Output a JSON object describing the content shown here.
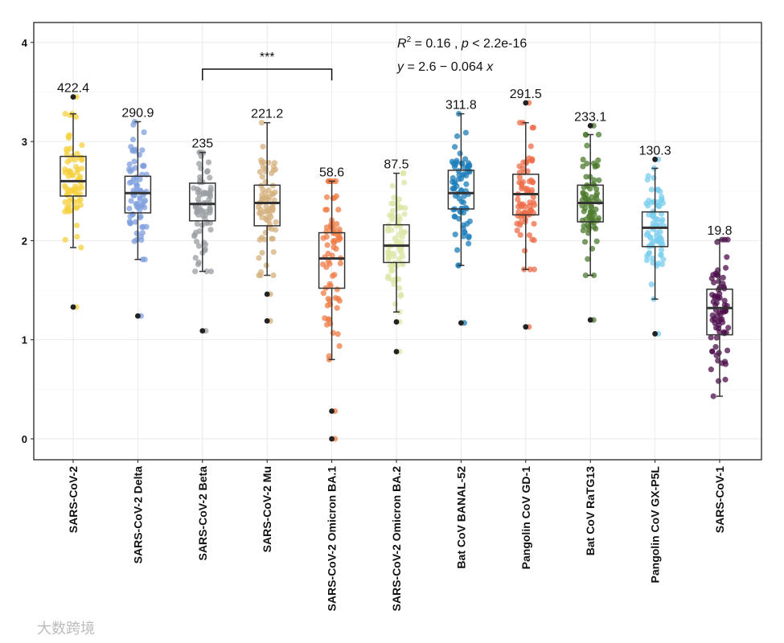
{
  "chart_data": {
    "type": "box",
    "title": "",
    "xlabel": "",
    "ylabel": "",
    "ylim": [
      -0.2,
      4.2
    ],
    "yticks": [
      0,
      1,
      2,
      3,
      4
    ],
    "grid": true,
    "categories": [
      "SARS-CoV-2",
      "SARS-CoV-2 Delta",
      "SARS-CoV-2 Beta",
      "SARS-CoV-2 Mu",
      "SARS-CoV-2 Omicron BA.1",
      "SARS-CoV-2 Omicron BA.2",
      "Bat CoV BANAL-52",
      "Pangolin CoV GD-1",
      "Bat CoV RaTG13",
      "Pangolin CoV GX-P5L",
      "SARS-CoV-1"
    ],
    "colors": [
      "#F6D03F",
      "#7F9FDD",
      "#9A9FA3",
      "#D4B07E",
      "#F07C45",
      "#DCE5A4",
      "#1C7EBB",
      "#EE6C48",
      "#4C7B2D",
      "#79CDEE",
      "#4E0F4C"
    ],
    "top_labels": [
      "422.4",
      "290.9",
      "235",
      "221.2",
      "58.6",
      "87.5",
      "311.8",
      "291.5",
      "233.1",
      "130.3",
      "19.8"
    ],
    "boxes": [
      {
        "low": 1.93,
        "q1": 2.45,
        "median": 2.6,
        "q3": 2.85,
        "high": 3.28,
        "outliers": [
          1.33,
          3.45
        ]
      },
      {
        "low": 1.81,
        "q1": 2.28,
        "median": 2.48,
        "q3": 2.65,
        "high": 3.2,
        "outliers": [
          1.24
        ]
      },
      {
        "low": 1.69,
        "q1": 2.2,
        "median": 2.37,
        "q3": 2.58,
        "high": 2.89,
        "outliers": [
          1.09
        ]
      },
      {
        "low": 1.65,
        "q1": 2.15,
        "median": 2.38,
        "q3": 2.56,
        "high": 3.19,
        "outliers": [
          1.19,
          1.46
        ]
      },
      {
        "low": 0.8,
        "q1": 1.52,
        "median": 1.82,
        "q3": 2.08,
        "high": 2.6,
        "outliers": [
          0.28,
          0.0
        ]
      },
      {
        "low": 1.28,
        "q1": 1.78,
        "median": 1.95,
        "q3": 2.16,
        "high": 2.68,
        "outliers": [
          1.18,
          0.88
        ]
      },
      {
        "low": 1.75,
        "q1": 2.32,
        "median": 2.48,
        "q3": 2.71,
        "high": 3.28,
        "outliers": [
          1.17
        ]
      },
      {
        "low": 1.71,
        "q1": 2.26,
        "median": 2.47,
        "q3": 2.67,
        "high": 3.19,
        "outliers": [
          1.13,
          3.39
        ]
      },
      {
        "low": 1.65,
        "q1": 2.19,
        "median": 2.38,
        "q3": 2.56,
        "high": 3.07,
        "outliers": [
          1.2,
          3.16
        ]
      },
      {
        "low": 1.41,
        "q1": 1.94,
        "median": 2.13,
        "q3": 2.29,
        "high": 2.73,
        "outliers": [
          1.06,
          2.82
        ]
      },
      {
        "low": 0.43,
        "q1": 1.05,
        "median": 1.32,
        "q3": 1.51,
        "high": 2.01,
        "outliers": []
      }
    ],
    "significance": {
      "from": 2,
      "to": 4,
      "label": "***"
    },
    "regression": {
      "r2_prefix": "R",
      "r2_rest": " = 0.16 , ",
      "p_sym": "p",
      "p_rest": " < 2.2e-16",
      "eq_y": "y",
      "eq_mid": " = 2.6 − 0.064 ",
      "eq_x": "x"
    }
  },
  "watermark": "大数跨境"
}
